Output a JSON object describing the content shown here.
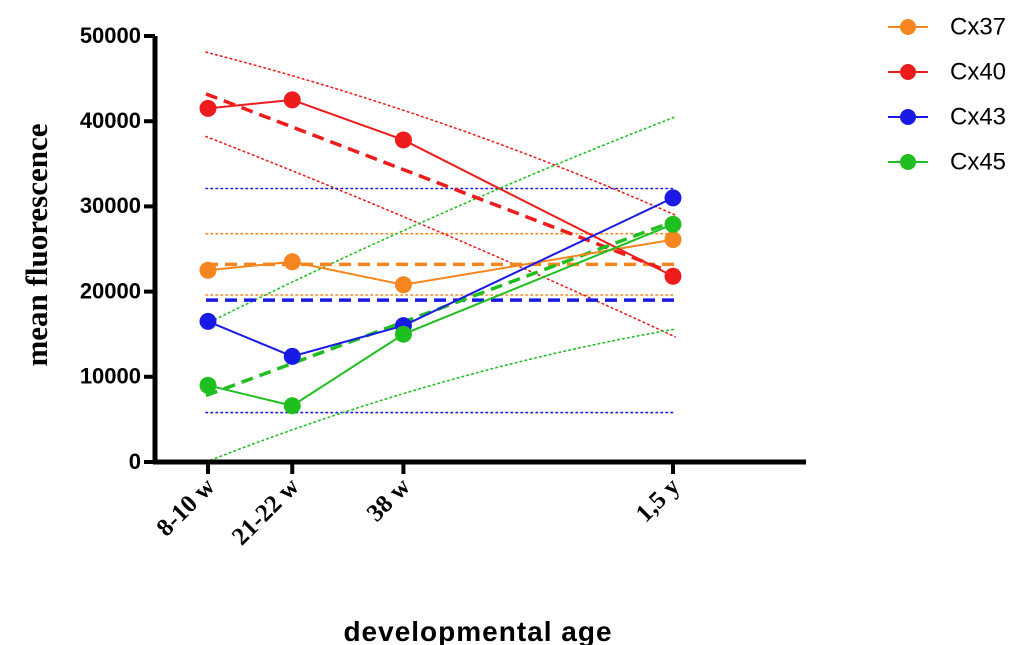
{
  "chart_data": {
    "type": "line",
    "xlabel": "developmental age",
    "ylabel": "mean fluorescence",
    "ylim": [
      0,
      50000
    ],
    "yticks": [
      "0",
      "10000",
      "20000",
      "30000",
      "40000",
      "50000"
    ],
    "categories": [
      "8-10 w",
      "21-22 w",
      "38 w",
      "1,5 y"
    ],
    "x_positions_weeks": [
      9,
      21.5,
      38,
      78
    ],
    "legend_position": "top-right",
    "grid": false,
    "series": [
      {
        "name": "Cx37",
        "color": "#f5861f",
        "values": [
          22500,
          23500,
          20800,
          26100
        ],
        "fit": {
          "style": "horizontal",
          "mean": 23200,
          "band": [
            19600,
            26800
          ]
        }
      },
      {
        "name": "Cx40",
        "color": "#ee1c1c",
        "values": [
          41500,
          42500,
          37800,
          21800
        ],
        "fit": {
          "style": "linear",
          "start": 43200,
          "end": 22100,
          "upper": [
            48100,
            29000
          ],
          "lower": [
            38200,
            14700
          ]
        }
      },
      {
        "name": "Cx43",
        "color": "#1a1ae6",
        "values": [
          16500,
          12400,
          16000,
          31000
        ],
        "fit": {
          "style": "horizontal",
          "mean": 19000,
          "band": [
            5800,
            32100
          ]
        }
      },
      {
        "name": "Cx45",
        "color": "#1fbf1f",
        "values": [
          9000,
          6600,
          15000,
          27900
        ],
        "fit": {
          "style": "linear",
          "start": 7800,
          "end": 28300,
          "upper": [
            16200,
            40500
          ],
          "lower": [
            0,
            15600
          ]
        }
      }
    ]
  }
}
